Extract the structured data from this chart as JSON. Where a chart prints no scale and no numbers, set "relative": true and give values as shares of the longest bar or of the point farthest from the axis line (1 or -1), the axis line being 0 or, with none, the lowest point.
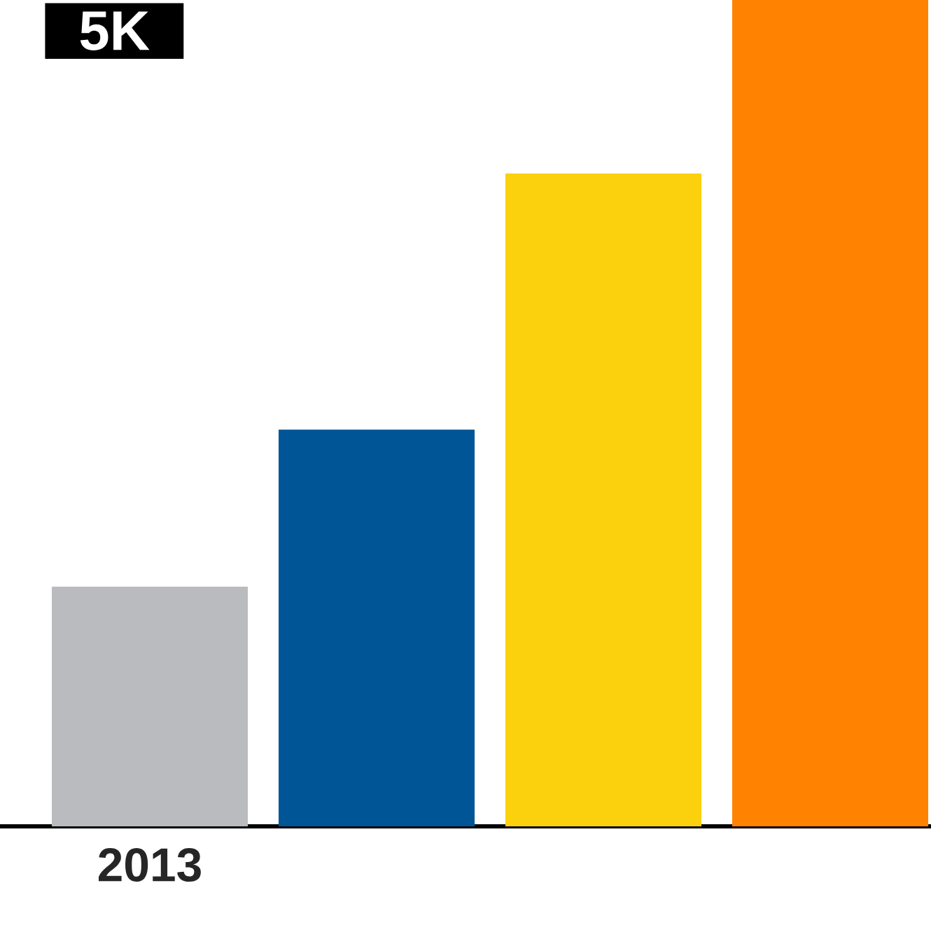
{
  "chart_data": {
    "type": "bar",
    "relative": true,
    "categories": [
      "2013",
      null,
      null,
      null
    ],
    "values": [
      0.29,
      0.48,
      0.79,
      1
    ],
    "colors": [
      "#babbbf",
      "#005596",
      "#fbd00d",
      "#ff8200"
    ],
    "annotations": [
      "5K"
    ]
  }
}
